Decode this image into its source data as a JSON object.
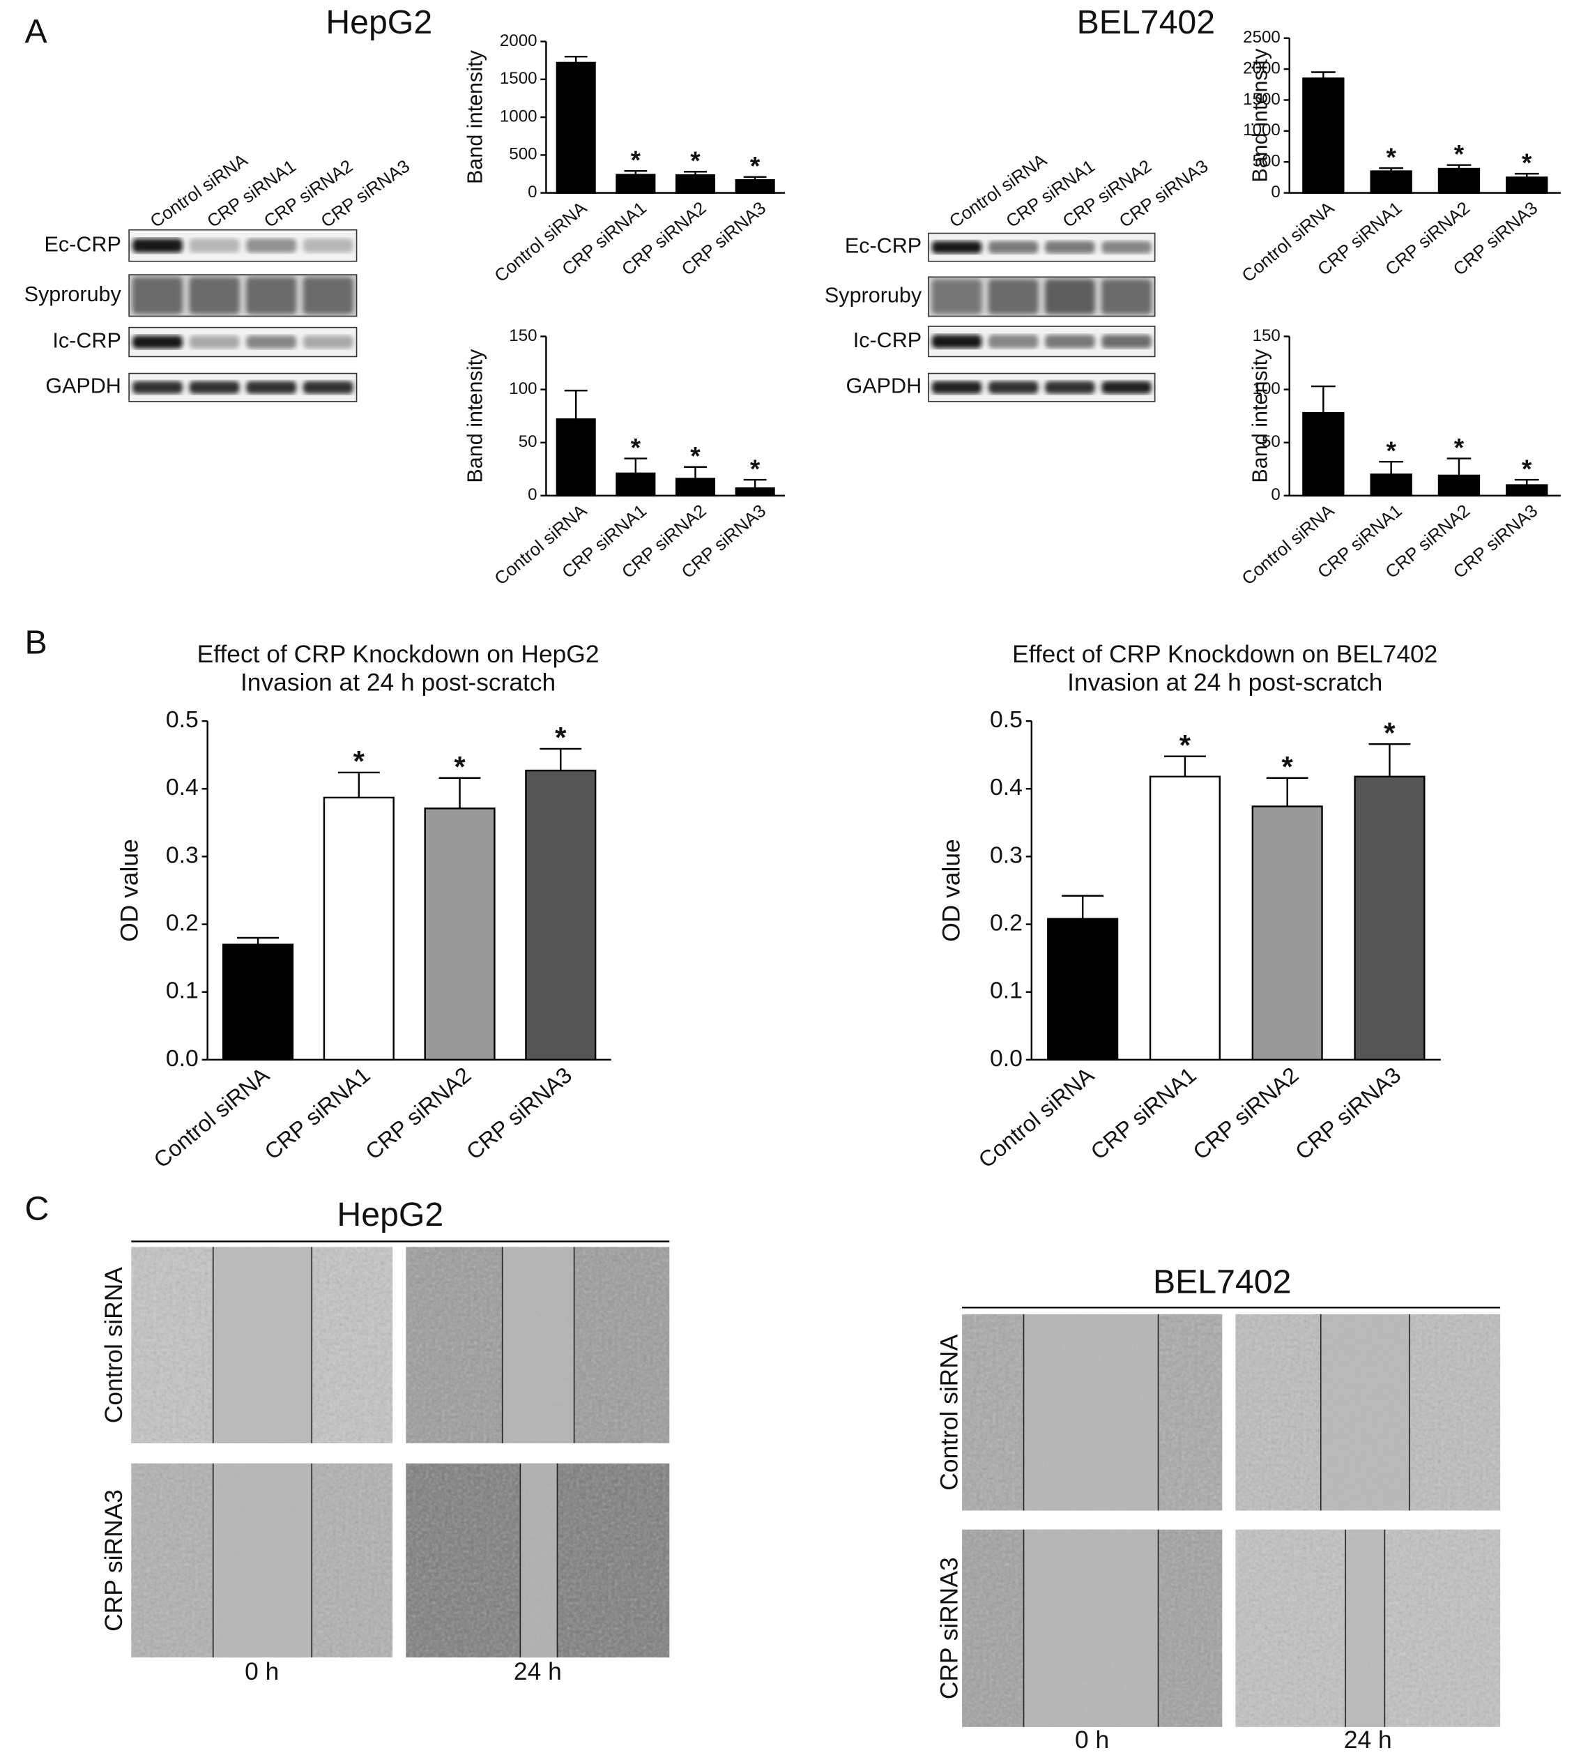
{
  "panels": [
    "A",
    "B",
    "C"
  ],
  "blots": [
    {
      "title": "HepG2",
      "lanes": [
        "Control siRNA",
        "CRP siRNA1",
        "CRP siRNA2",
        "CRP siRNA3"
      ],
      "rows": [
        "Ec-CRP",
        "Syproruby",
        "Ic-CRP",
        "GAPDH"
      ]
    },
    {
      "title": "BEL7402",
      "lanes": [
        "Control siRNA",
        "CRP siRNA1",
        "CRP siRNA2",
        "CRP siRNA3"
      ],
      "rows": [
        "Ec-CRP",
        "Syproruby",
        "Ic-CRP",
        "GAPDH"
      ]
    }
  ],
  "wound_healing": [
    {
      "title": "HepG2",
      "rows": [
        "Control siRNA",
        "CRP siRNA3"
      ],
      "columns": [
        "0 h",
        "24 h"
      ]
    },
    {
      "title": "BEL7402",
      "rows": [
        "Control siRNA",
        "CRP siRNA3"
      ],
      "columns": [
        "0 h",
        "24 h"
      ]
    }
  ],
  "chart_data": [
    {
      "type": "bar",
      "ylabel": "Band intensity",
      "categories": [
        "Control siRNA",
        "CRP siRNA1",
        "CRP siRNA2",
        "CRP siRNA3"
      ],
      "values": [
        1720,
        240,
        235,
        170
      ],
      "errors": [
        80,
        50,
        45,
        40
      ],
      "significance": [
        null,
        "*",
        "*",
        "*"
      ],
      "colors": [
        "#000000",
        "#000000",
        "#000000",
        "#000000"
      ],
      "ylim": [
        0,
        2000
      ],
      "yticks": [
        0,
        500,
        1000,
        1500,
        2000
      ]
    },
    {
      "type": "bar",
      "ylabel": "Band intensity",
      "categories": [
        "Control siRNA",
        "CRP siRNA1",
        "CRP siRNA2",
        "CRP siRNA3"
      ],
      "values": [
        72,
        21,
        16,
        7
      ],
      "errors": [
        27,
        14,
        11,
        8
      ],
      "significance": [
        null,
        "*",
        "*",
        "*"
      ],
      "colors": [
        "#000000",
        "#000000",
        "#000000",
        "#000000"
      ],
      "ylim": [
        0,
        150
      ],
      "yticks": [
        0,
        50,
        100,
        150
      ]
    },
    {
      "type": "bar",
      "ylabel": "Band intensity",
      "categories": [
        "Control siRNA",
        "CRP siRNA1",
        "CRP siRNA2",
        "CRP siRNA3"
      ],
      "values": [
        1850,
        350,
        390,
        250
      ],
      "errors": [
        100,
        50,
        60,
        60
      ],
      "significance": [
        null,
        "*",
        "*",
        "*"
      ],
      "colors": [
        "#000000",
        "#000000",
        "#000000",
        "#000000"
      ],
      "ylim": [
        0,
        2500
      ],
      "yticks": [
        0,
        500,
        1000,
        1500,
        2000,
        2500
      ]
    },
    {
      "type": "bar",
      "ylabel": "Band intensity",
      "categories": [
        "Control siRNA",
        "CRP siRNA1",
        "CRP siRNA2",
        "CRP siRNA3"
      ],
      "values": [
        78,
        20,
        19,
        10
      ],
      "errors": [
        25,
        12,
        16,
        5
      ],
      "significance": [
        null,
        "*",
        "*",
        "*"
      ],
      "colors": [
        "#000000",
        "#000000",
        "#000000",
        "#000000"
      ],
      "ylim": [
        0,
        150
      ],
      "yticks": [
        0,
        50,
        100,
        150
      ]
    },
    {
      "type": "bar",
      "title": [
        "Effect of CRP Knockdown on HepG2",
        "Invasion at 24 h post-scratch"
      ],
      "ylabel": "OD value",
      "categories": [
        "Control siRNA",
        "CRP siRNA1",
        "CRP siRNA2",
        "CRP siRNA3"
      ],
      "values": [
        0.17,
        0.387,
        0.371,
        0.427
      ],
      "errors": [
        0.01,
        0.037,
        0.045,
        0.032
      ],
      "significance": [
        null,
        "*",
        "*",
        "*"
      ],
      "colors": [
        "#000000",
        "#ffffff",
        "#999999",
        "#555555"
      ],
      "ylim": [
        0,
        0.5
      ],
      "yticks": [
        {
          "value": 0,
          "label": "0.0"
        },
        0.1,
        0.2,
        0.3,
        0.4,
        0.5
      ]
    },
    {
      "type": "bar",
      "title": [
        "Effect of CRP Knockdown on BEL7402",
        "Invasion at 24 h post-scratch"
      ],
      "ylabel": "OD value",
      "categories": [
        "Control siRNA",
        "CRP siRNA1",
        "CRP siRNA2",
        "CRP siRNA3"
      ],
      "values": [
        0.208,
        0.418,
        0.374,
        0.418
      ],
      "errors": [
        0.034,
        0.03,
        0.042,
        0.048
      ],
      "significance": [
        null,
        "*",
        "*",
        "*"
      ],
      "colors": [
        "#000000",
        "#ffffff",
        "#999999",
        "#555555"
      ],
      "ylim": [
        0,
        0.5
      ],
      "yticks": [
        {
          "value": 0,
          "label": "0.0"
        },
        0.1,
        0.2,
        0.3,
        0.4,
        0.5
      ]
    }
  ]
}
